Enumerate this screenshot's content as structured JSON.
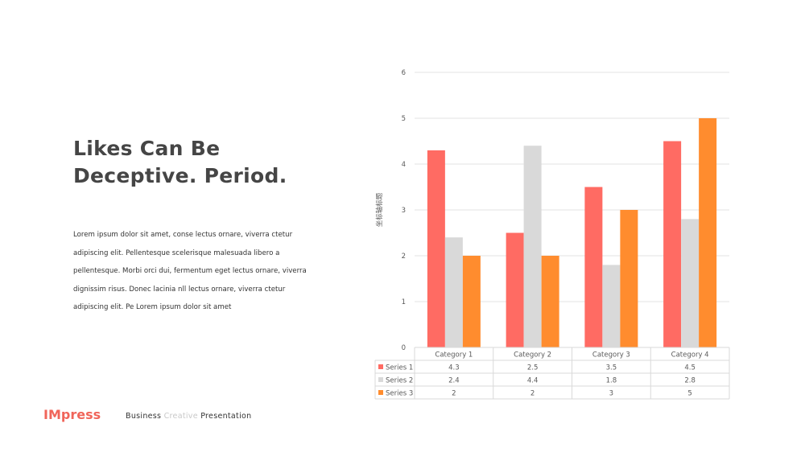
{
  "slide": {
    "headline_lines": [
      "Likes Can Be",
      "Deceptive. Period."
    ],
    "body_lines": [
      "Lorem  ipsum  dolor  sit  amet,  conse  lectus  ornare,  viverra  ctetur",
      "adipiscing  elit.  Pellentesque  scelerisque  malesuada  libero  a",
      "pellentesque.  Morbi  orci  dui,  fermentum  eget  lectus  ornare,  viverra",
      "dignissim  risus.  Donec lacinia  nll lectus  ornare,  viverra  ctetur",
      "adipiscing  elit.  Pe Lorem  ipsum  dolor  sit  amet"
    ],
    "brand": "IMpress",
    "tagline": {
      "part1": "Business",
      "part2": "Creative",
      "part3": "Presentation"
    }
  },
  "colors": {
    "series1": "#ff6b63",
    "series2": "#d9d9d9",
    "series3": "#ff8c2e",
    "brand": "#f0655a"
  },
  "chart_data": {
    "type": "bar",
    "categories": [
      "Category 1",
      "Category 2",
      "Category 3",
      "Category 4"
    ],
    "series": [
      {
        "name": "Series 1",
        "values": [
          4.3,
          2.5,
          3.5,
          4.5
        ]
      },
      {
        "name": "Series 2",
        "values": [
          2.4,
          4.4,
          1.8,
          2.8
        ]
      },
      {
        "name": "Series 3",
        "values": [
          2,
          2,
          3,
          5
        ]
      }
    ],
    "ylabel": "坐标轴标题",
    "ylim": [
      0,
      6
    ],
    "yticks": [
      0,
      1,
      2,
      3,
      4,
      5,
      6
    ],
    "grid": true,
    "legend": "data-table-below",
    "table_values": [
      [
        "4.3",
        "2.5",
        "3.5",
        "4.5"
      ],
      [
        "2.4",
        "4.4",
        "1.8",
        "2.8"
      ],
      [
        "2",
        "2",
        "3",
        "5"
      ]
    ]
  }
}
